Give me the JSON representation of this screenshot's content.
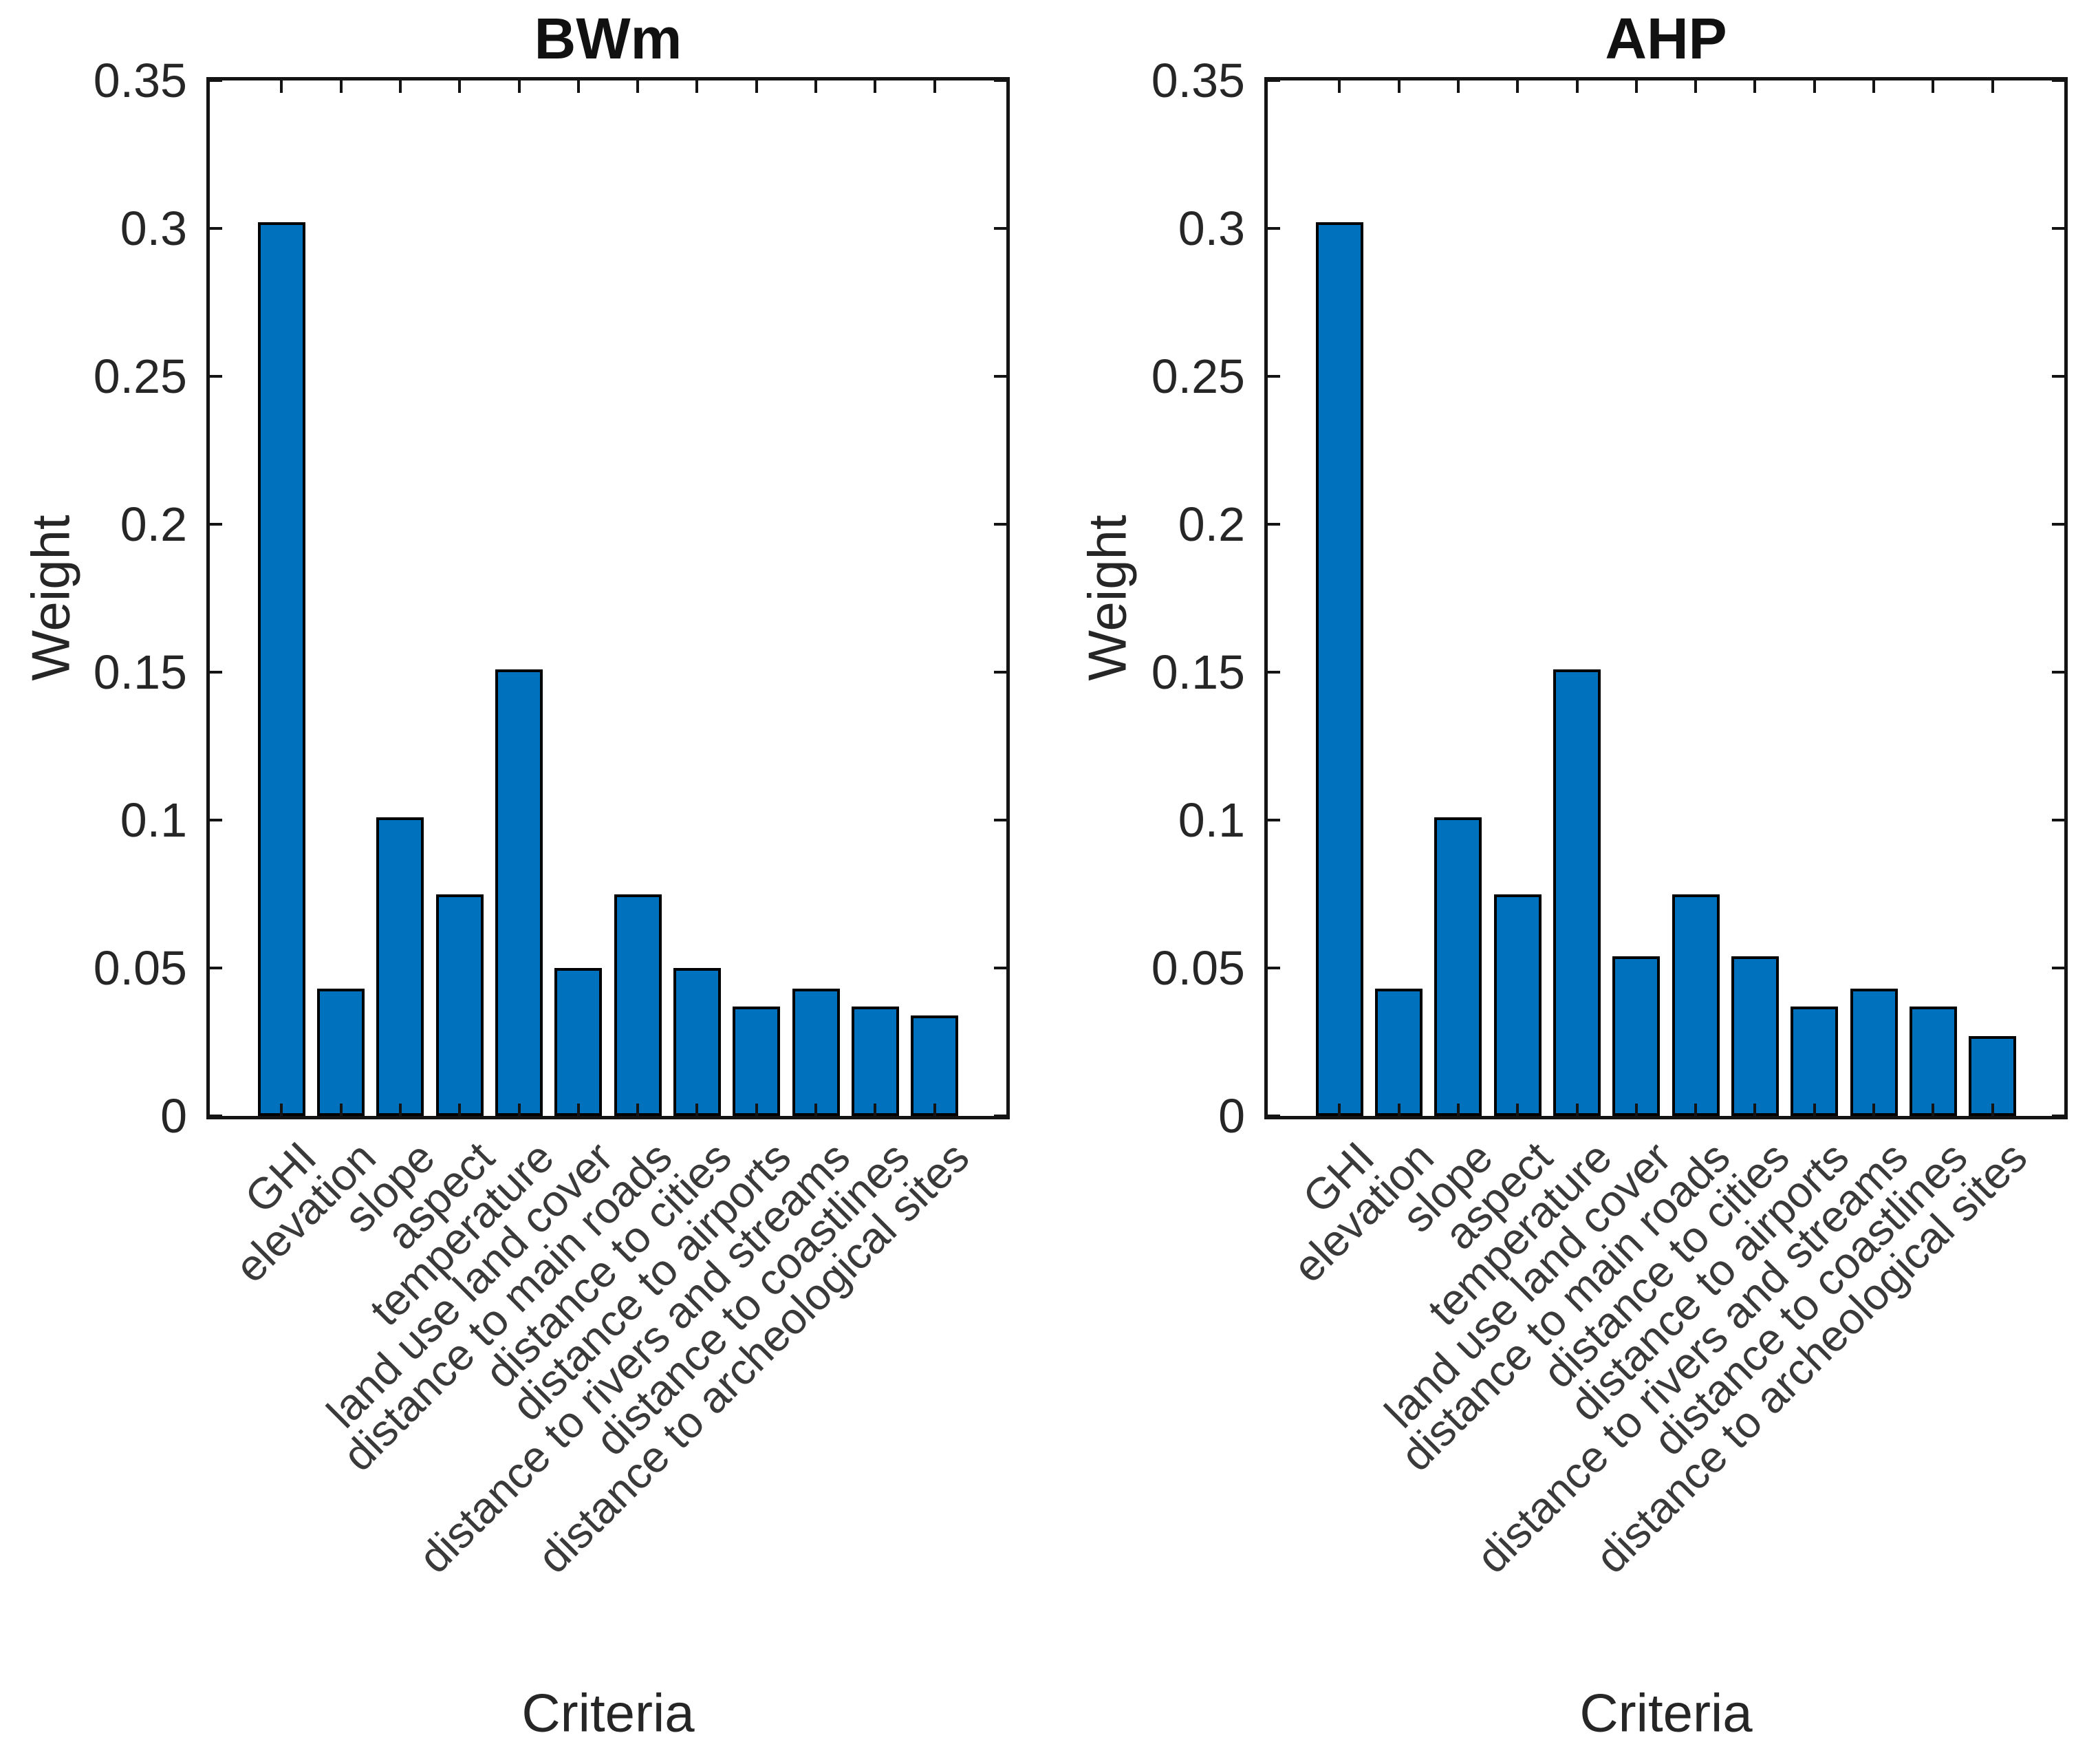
{
  "figure": {
    "background": "#ffffff"
  },
  "chart_data": [
    {
      "type": "bar",
      "title": "BWm",
      "xlabel": "Criteria",
      "ylabel": "Weight",
      "ylim": [
        0,
        0.35
      ],
      "yticks": [
        0,
        0.05,
        0.1,
        0.15,
        0.2,
        0.25,
        0.3,
        0.35
      ],
      "ytick_labels": [
        "0",
        "0.05",
        "0.1",
        "0.15",
        "0.2",
        "0.25",
        "0.3",
        "0.35"
      ],
      "grid": false,
      "legend_position": "none",
      "bar_color": "#0072BD",
      "bar_edge_color": "#000000",
      "categories": [
        "GHI",
        "elevation",
        "slope",
        "aspect",
        "temperature",
        "land use land cover",
        "distance to main roads",
        "distance to cities",
        "distance to airports",
        "distance to rivers and streams",
        "distance to coastlines",
        "distance to archeological sites"
      ],
      "values": [
        0.302,
        0.043,
        0.101,
        0.075,
        0.151,
        0.05,
        0.075,
        0.05,
        0.037,
        0.043,
        0.037,
        0.034
      ]
    },
    {
      "type": "bar",
      "title": "AHP",
      "xlabel": "Criteria",
      "ylabel": "Weight",
      "ylim": [
        0,
        0.35
      ],
      "yticks": [
        0,
        0.05,
        0.1,
        0.15,
        0.2,
        0.25,
        0.3,
        0.35
      ],
      "ytick_labels": [
        "0",
        "0.05",
        "0.1",
        "0.15",
        "0.2",
        "0.25",
        "0.3",
        "0.35"
      ],
      "grid": false,
      "legend_position": "none",
      "bar_color": "#0072BD",
      "bar_edge_color": "#000000",
      "categories": [
        "GHI",
        "elevation",
        "slope",
        "aspect",
        "temperature",
        "land use land cover",
        "distance to main roads",
        "distance to cities",
        "distance to airports",
        "distance to rivers and streams",
        "distance to coastlines",
        "distance to archeological sites"
      ],
      "values": [
        0.302,
        0.043,
        0.101,
        0.075,
        0.151,
        0.054,
        0.075,
        0.054,
        0.037,
        0.043,
        0.037,
        0.027
      ]
    }
  ]
}
